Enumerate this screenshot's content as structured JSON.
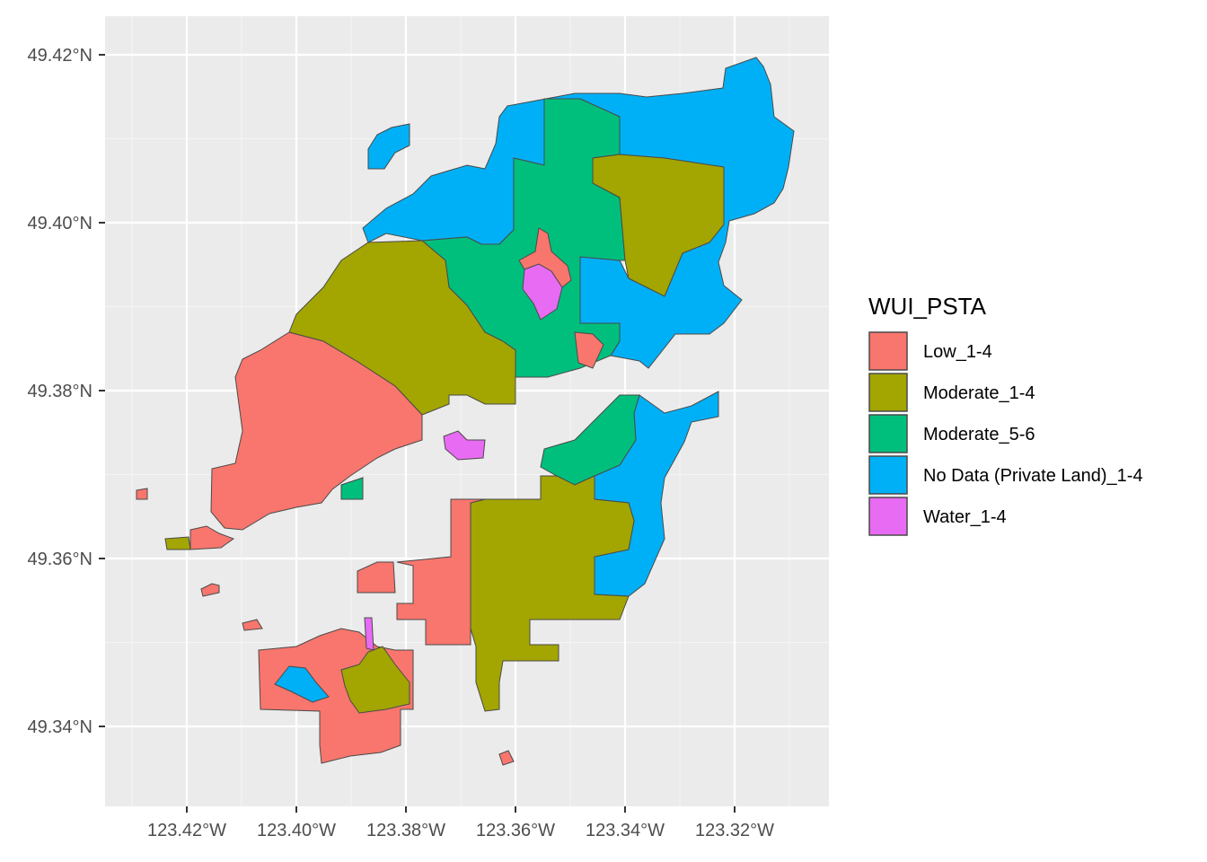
{
  "chart_data": {
    "type": "map",
    "x_axis": {
      "ticks": [
        "123.42°W",
        "123.40°W",
        "123.38°W",
        "123.36°W",
        "123.34°W",
        "123.32°W"
      ]
    },
    "y_axis": {
      "ticks": [
        "49.42°N",
        "49.40°N",
        "49.38°N",
        "49.36°N",
        "49.34°N"
      ]
    },
    "legend": {
      "title": "WUI_PSTA",
      "placement": "right",
      "entries": [
        {
          "key": "low",
          "label": "Low_1-4",
          "color": "#F8766D"
        },
        {
          "key": "mod14",
          "label": "Moderate_1-4",
          "color": "#A3A500"
        },
        {
          "key": "mod56",
          "label": "Moderate_5-6",
          "color": "#00BF7D"
        },
        {
          "key": "nodata",
          "label": "No Data (Private Land)_1-4",
          "color": "#00B0F6"
        },
        {
          "key": "water",
          "label": "Water_1-4",
          "color": "#E76BF3"
        }
      ]
    },
    "background": "#EBEBEB",
    "grid": true
  }
}
